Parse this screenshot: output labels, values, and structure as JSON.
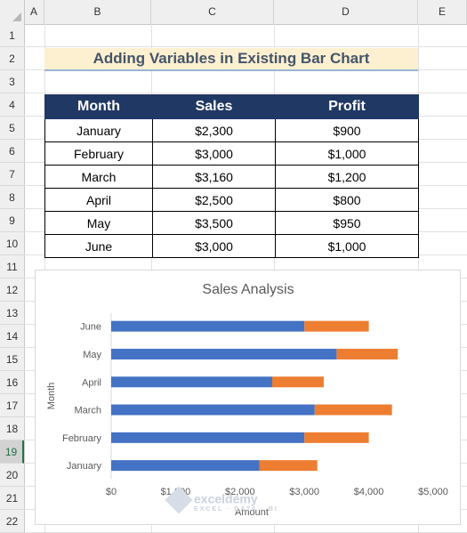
{
  "columns": [
    "A",
    "B",
    "C",
    "D",
    "E"
  ],
  "rows": [
    "1",
    "2",
    "3",
    "4",
    "5",
    "6",
    "7",
    "8",
    "9",
    "10",
    "11",
    "12",
    "13",
    "14",
    "15",
    "16",
    "17",
    "18",
    "19",
    "20",
    "21",
    "22"
  ],
  "selected_row": "19",
  "sheet_title": "Adding Variables in Existing Bar Chart",
  "table": {
    "headers": [
      "Month",
      "Sales",
      "Profit"
    ],
    "rows": [
      [
        "January",
        "$2,300",
        "$900"
      ],
      [
        "February",
        "$3,000",
        "$1,000"
      ],
      [
        "March",
        "$3,160",
        "$1,200"
      ],
      [
        "April",
        "$2,500",
        "$800"
      ],
      [
        "May",
        "$3,500",
        "$950"
      ],
      [
        "June",
        "$3,000",
        "$1,000"
      ]
    ]
  },
  "watermark": {
    "name": "exceldemy",
    "tagline": "EXCEL · DATA · BI"
  },
  "chart_data": {
    "type": "bar",
    "orientation": "horizontal",
    "stacked": true,
    "title": "Sales Analysis",
    "xlabel": "Amount",
    "ylabel": "Month",
    "categories": [
      "January",
      "February",
      "March",
      "April",
      "May",
      "June"
    ],
    "series": [
      {
        "values": [
          2300,
          3000,
          3160,
          2500,
          3500,
          3000
        ],
        "color": "#4472c4"
      },
      {
        "values": [
          900,
          1000,
          1200,
          800,
          950,
          1000
        ],
        "color": "#ed7d31"
      }
    ],
    "xlim": [
      0,
      5000
    ],
    "xticks": [
      "$0",
      "$1,000",
      "$2,000",
      "$3,000",
      "$4,000",
      "$5,000"
    ],
    "grid": false,
    "legend": "none"
  }
}
